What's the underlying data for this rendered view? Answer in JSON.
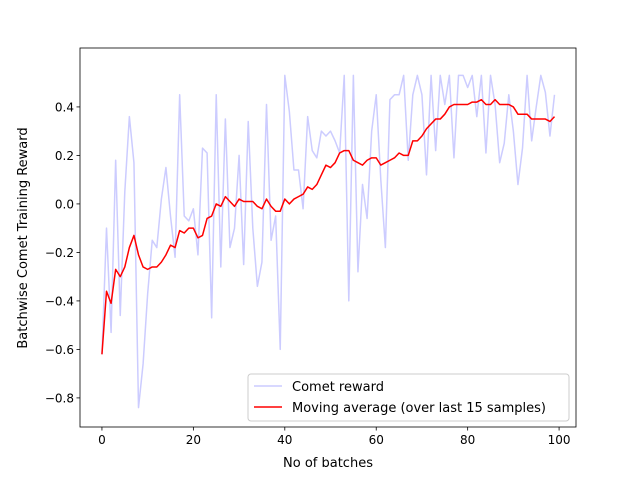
{
  "chart_data": {
    "type": "line",
    "title": "",
    "xlabel": "No of batches",
    "ylabel": "Batchwise Comet Training Reward",
    "xlim": [
      -4.8,
      103.7
    ],
    "ylim": [
      -0.92,
      0.643
    ],
    "xticks": [
      0,
      20,
      40,
      60,
      80,
      100
    ],
    "xtick_labels": [
      "0",
      "20",
      "40",
      "60",
      "80",
      "100"
    ],
    "yticks": [
      -0.8,
      -0.6,
      -0.4,
      -0.2,
      0.0,
      0.2,
      0.4
    ],
    "ytick_labels": [
      "−0.8",
      "−0.6",
      "−0.4",
      "−0.2",
      "0.0",
      "0.2",
      "0.4"
    ],
    "grid": false,
    "legend_position": "lower-right",
    "series": [
      {
        "name": "Comet reward",
        "color": "#ccccff",
        "values": [
          -0.62,
          -0.1,
          -0.53,
          0.18,
          -0.46,
          0.05,
          0.36,
          0.17,
          -0.84,
          -0.66,
          -0.37,
          -0.15,
          -0.18,
          0.02,
          0.15,
          -0.05,
          -0.22,
          0.45,
          -0.05,
          -0.07,
          -0.02,
          -0.21,
          0.23,
          0.21,
          -0.47,
          0.45,
          -0.26,
          0.35,
          -0.18,
          -0.1,
          0.2,
          -0.25,
          0.34,
          -0.1,
          -0.34,
          -0.24,
          0.41,
          -0.15,
          -0.05,
          -0.6,
          0.53,
          0.38,
          0.14,
          0.14,
          -0.02,
          0.36,
          0.22,
          0.19,
          0.3,
          0.28,
          0.3,
          0.26,
          0.21,
          0.53,
          -0.4,
          0.53,
          -0.28,
          0.08,
          -0.06,
          0.3,
          0.45,
          0.1,
          -0.18,
          0.43,
          0.45,
          0.45,
          0.53,
          0.18,
          0.45,
          0.53,
          0.45,
          0.12,
          0.53,
          0.22,
          0.53,
          0.41,
          0.53,
          0.19,
          0.53,
          0.53,
          0.48,
          0.53,
          0.36,
          0.53,
          0.21,
          0.53,
          0.41,
          0.17,
          0.25,
          0.45,
          0.3,
          0.08,
          0.23,
          0.53,
          0.26,
          0.4,
          0.53,
          0.46,
          0.28,
          0.45
        ]
      },
      {
        "name": "Moving average (over last 15 samples)",
        "color": "#ff0000",
        "values": [
          -0.62,
          -0.36,
          -0.41,
          -0.27,
          -0.3,
          -0.26,
          -0.18,
          -0.13,
          -0.21,
          -0.26,
          -0.27,
          -0.26,
          -0.26,
          -0.24,
          -0.21,
          -0.17,
          -0.18,
          -0.11,
          -0.12,
          -0.1,
          -0.1,
          -0.14,
          -0.13,
          -0.06,
          -0.05,
          0.0,
          -0.01,
          0.03,
          0.01,
          -0.01,
          0.02,
          0.01,
          0.01,
          0.01,
          -0.01,
          -0.02,
          0.02,
          -0.01,
          -0.03,
          -0.03,
          0.02,
          0.0,
          0.02,
          0.03,
          0.04,
          0.07,
          0.06,
          0.08,
          0.12,
          0.16,
          0.15,
          0.17,
          0.21,
          0.22,
          0.22,
          0.18,
          0.17,
          0.16,
          0.18,
          0.19,
          0.19,
          0.16,
          0.17,
          0.18,
          0.19,
          0.21,
          0.2,
          0.2,
          0.26,
          0.26,
          0.28,
          0.31,
          0.33,
          0.35,
          0.35,
          0.37,
          0.4,
          0.41,
          0.41,
          0.41,
          0.41,
          0.42,
          0.42,
          0.43,
          0.41,
          0.41,
          0.43,
          0.41,
          0.41,
          0.41,
          0.4,
          0.37,
          0.37,
          0.37,
          0.35,
          0.35,
          0.35,
          0.35,
          0.34,
          0.36
        ]
      }
    ]
  }
}
